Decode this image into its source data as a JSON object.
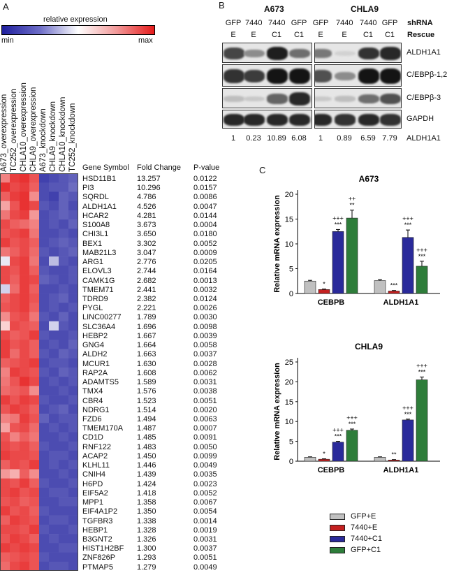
{
  "panel_a": {
    "letter": "A",
    "colorbar": {
      "label": "relative expression",
      "min_label": "min",
      "max_label": "max",
      "low_color": "#1f1f9e",
      "mid_color": "#ffffff",
      "high_color": "#e51b1b"
    },
    "columns": [
      "A673_overexpression",
      "TC252_overexpression",
      "CHLA10_overexpression",
      "CHLA9_overexpression",
      "A673_knockdown",
      "CHLA9_knockdown",
      "CHLA10_knockdown",
      "TC252_knockdown"
    ],
    "table_headers": [
      "Gene Symbol",
      "Fold Change",
      "P-value"
    ],
    "genes": [
      [
        "HSD11B1",
        "13.257",
        "0.0122"
      ],
      [
        "PI3",
        "10.296",
        "0.0157"
      ],
      [
        "SQRDL",
        "4.786",
        "0.0086"
      ],
      [
        "ALDH1A1",
        "4.526",
        "0.0047"
      ],
      [
        "HCAR2",
        "4.281",
        "0.0144"
      ],
      [
        "S100A8",
        "3.673",
        "0.0004"
      ],
      [
        "CHI3L1",
        "3.650",
        "0.0180"
      ],
      [
        "BEX1",
        "3.302",
        "0.0052"
      ],
      [
        "MAB21L3",
        "3.047",
        "0.0009"
      ],
      [
        "ARG1",
        "2.776",
        "0.0205"
      ],
      [
        "ELOVL3",
        "2.744",
        "0.0164"
      ],
      [
        "CAMK1G",
        "2.682",
        "0.0013"
      ],
      [
        "TMEM71",
        "2.441",
        "0.0032"
      ],
      [
        "TDRD9",
        "2.382",
        "0.0124"
      ],
      [
        "PYGL",
        "2.221",
        "0.0026"
      ],
      [
        "LINC00277",
        "1.789",
        "0.0030"
      ],
      [
        "SLC36A4",
        "1.696",
        "0.0098"
      ],
      [
        "HEBP2",
        "1.667",
        "0.0039"
      ],
      [
        "GNG4",
        "1.664",
        "0.0058"
      ],
      [
        "ALDH2",
        "1.663",
        "0.0037"
      ],
      [
        "MCUR1",
        "1.630",
        "0.0028"
      ],
      [
        "RAP2A",
        "1.608",
        "0.0062"
      ],
      [
        "ADAMTS5",
        "1.589",
        "0.0031"
      ],
      [
        "TMX4",
        "1.576",
        "0.0038"
      ],
      [
        "CBR4",
        "1.523",
        "0.0051"
      ],
      [
        "NDRG1",
        "1.514",
        "0.0020"
      ],
      [
        "FZD6",
        "1.494",
        "0.0063"
      ],
      [
        "TMEM170A",
        "1.487",
        "0.0007"
      ],
      [
        "CD1D",
        "1.485",
        "0.0091"
      ],
      [
        "RNF122",
        "1.483",
        "0.0050"
      ],
      [
        "ACAP2",
        "1.450",
        "0.0099"
      ],
      [
        "KLHL11",
        "1.446",
        "0.0049"
      ],
      [
        "CNIH4",
        "1.439",
        "0.0035"
      ],
      [
        "H6PD",
        "1.424",
        "0.0023"
      ],
      [
        "EIF5A2",
        "1.418",
        "0.0052"
      ],
      [
        "MPP1",
        "1.358",
        "0.0067"
      ],
      [
        "EIF4A1P2",
        "1.350",
        "0.0054"
      ],
      [
        "TGFBR3",
        "1.338",
        "0.0014"
      ],
      [
        "HEBP1",
        "1.328",
        "0.0019"
      ],
      [
        "B3GNT2",
        "1.326",
        "0.0031"
      ],
      [
        "HIST1H2BF",
        "1.300",
        "0.0037"
      ],
      [
        "ZNF826P",
        "1.293",
        "0.0051"
      ],
      [
        "PTMAP5",
        "1.279",
        "0.0049"
      ]
    ],
    "heatmap": [
      [
        0.55,
        0.85,
        0.9,
        0.75,
        -0.85,
        -0.8,
        -0.75,
        -0.7
      ],
      [
        0.9,
        0.8,
        0.85,
        0.7,
        -0.8,
        -0.75,
        -0.75,
        -0.65
      ],
      [
        0.7,
        0.85,
        0.9,
        0.5,
        -0.8,
        -0.85,
        -0.7,
        -0.75
      ],
      [
        0.4,
        0.75,
        0.9,
        0.8,
        -0.75,
        -0.8,
        -0.7,
        -0.8
      ],
      [
        0.6,
        0.8,
        0.85,
        0.45,
        -0.8,
        -0.75,
        -0.7,
        -0.75
      ],
      [
        0.8,
        0.7,
        0.65,
        0.55,
        -0.8,
        -0.75,
        -0.8,
        -0.7
      ],
      [
        0.75,
        0.8,
        0.85,
        0.6,
        -0.8,
        -0.8,
        -0.75,
        -0.8
      ],
      [
        0.85,
        0.75,
        0.8,
        0.7,
        -0.8,
        -0.75,
        -0.7,
        -0.75
      ],
      [
        0.6,
        0.7,
        0.8,
        0.65,
        -0.75,
        -0.8,
        -0.75,
        -0.7
      ],
      [
        -0.1,
        0.8,
        0.85,
        0.6,
        -0.8,
        -0.3,
        -0.75,
        -0.8
      ],
      [
        0.8,
        0.75,
        0.85,
        0.7,
        -0.75,
        -0.8,
        -0.8,
        -0.75
      ],
      [
        0.8,
        0.7,
        0.85,
        0.8,
        -0.7,
        -0.75,
        -0.8,
        -0.75
      ],
      [
        -0.2,
        0.65,
        0.85,
        0.7,
        -0.8,
        -0.8,
        -0.75,
        -0.8
      ],
      [
        0.7,
        0.8,
        0.85,
        0.75,
        -0.8,
        -0.75,
        -0.7,
        -0.8
      ],
      [
        0.75,
        0.8,
        0.85,
        0.7,
        -0.8,
        -0.75,
        -0.8,
        -0.75
      ],
      [
        0.5,
        0.75,
        0.8,
        0.6,
        -0.75,
        -0.8,
        -0.7,
        -0.8
      ],
      [
        0.2,
        0.8,
        0.75,
        0.7,
        -0.8,
        -0.2,
        -0.75,
        -0.8
      ],
      [
        0.8,
        0.7,
        0.75,
        0.85,
        -0.75,
        -0.8,
        -0.8,
        -0.75
      ],
      [
        0.85,
        0.75,
        0.8,
        0.7,
        -0.8,
        -0.75,
        -0.8,
        -0.7
      ],
      [
        0.85,
        0.65,
        0.8,
        0.7,
        -0.75,
        -0.8,
        -0.7,
        -0.75
      ],
      [
        0.7,
        0.75,
        0.8,
        0.85,
        -0.8,
        -0.75,
        -0.75,
        -0.8
      ],
      [
        0.55,
        0.85,
        0.8,
        0.75,
        -0.75,
        -0.8,
        -0.7,
        -0.75
      ],
      [
        0.6,
        0.75,
        0.9,
        0.8,
        -0.8,
        -0.75,
        -0.8,
        -0.75
      ],
      [
        0.65,
        0.7,
        0.75,
        0.5,
        -0.8,
        -0.8,
        -0.75,
        -0.8
      ],
      [
        0.85,
        0.75,
        0.85,
        0.8,
        -0.75,
        -0.8,
        -0.8,
        -0.75
      ],
      [
        0.75,
        0.85,
        0.8,
        0.7,
        -0.8,
        -0.75,
        -0.7,
        -0.8
      ],
      [
        0.55,
        0.6,
        0.85,
        0.75,
        -0.7,
        -0.8,
        -0.75,
        -0.75
      ],
      [
        0.4,
        0.75,
        0.8,
        0.65,
        -0.8,
        -0.75,
        -0.8,
        -0.75
      ],
      [
        0.75,
        0.55,
        0.7,
        0.6,
        -0.8,
        -0.8,
        -0.75,
        -0.8
      ],
      [
        0.8,
        0.75,
        0.8,
        0.7,
        -0.75,
        -0.8,
        -0.8,
        -0.75
      ],
      [
        0.85,
        0.8,
        0.8,
        0.75,
        -0.8,
        -0.75,
        -0.75,
        -0.8
      ],
      [
        0.7,
        0.8,
        0.75,
        0.85,
        -0.8,
        -0.75,
        -0.8,
        -0.75
      ],
      [
        0.45,
        0.35,
        0.7,
        0.5,
        -0.8,
        -0.8,
        -0.75,
        -0.8
      ],
      [
        0.8,
        0.75,
        0.85,
        0.7,
        -0.75,
        -0.8,
        -0.8,
        -0.75
      ],
      [
        0.8,
        0.85,
        0.75,
        0.8,
        -0.8,
        -0.75,
        -0.75,
        -0.8
      ],
      [
        0.75,
        0.8,
        0.7,
        0.75,
        -0.8,
        -0.8,
        -0.75,
        -0.75
      ],
      [
        0.85,
        0.75,
        0.8,
        0.7,
        -0.75,
        -0.8,
        -0.8,
        -0.8
      ],
      [
        0.7,
        0.85,
        0.8,
        0.75,
        -0.8,
        -0.75,
        -0.75,
        -0.8
      ],
      [
        0.8,
        0.8,
        0.75,
        0.85,
        -0.75,
        -0.8,
        -0.8,
        -0.75
      ],
      [
        0.75,
        0.85,
        0.8,
        0.7,
        -0.8,
        -0.75,
        -0.8,
        -0.8
      ],
      [
        0.85,
        0.8,
        0.85,
        0.8,
        -0.8,
        -0.8,
        -0.75,
        -0.75
      ],
      [
        0.7,
        0.75,
        0.8,
        0.75,
        -0.75,
        -0.8,
        -0.8,
        -0.8
      ],
      [
        0.65,
        0.8,
        0.85,
        0.75,
        -0.8,
        -0.75,
        -0.75,
        -0.8
      ]
    ]
  },
  "panel_b": {
    "letter": "B",
    "cell_lines": [
      "A673",
      "CHLA9"
    ],
    "shrna_label": "shRNA",
    "rescue_label": "Rescue",
    "shrna": [
      "GFP",
      "7440",
      "7440",
      "GFP"
    ],
    "rescue": [
      "E",
      "E",
      "C1",
      "C1"
    ],
    "blot_labels": [
      "ALDH1A1",
      "C/EBPβ-1,2",
      "C/EBPβ-3",
      "GAPDH"
    ],
    "quant_label": "ALDH1A1",
    "quant_a673": [
      "1",
      "0.23",
      "10.89",
      "6.08"
    ],
    "quant_chla9": [
      "1",
      "0.89",
      "6.59",
      "7.79"
    ]
  },
  "panel_c": {
    "letter": "C",
    "legend": [
      {
        "name": "GFP+E",
        "color": "#c0c0c0"
      },
      {
        "name": "7440+E",
        "color": "#c42020"
      },
      {
        "name": "7440+C1",
        "color": "#2a2a9a"
      },
      {
        "name": "GFP+C1",
        "color": "#2e7d3a"
      }
    ]
  },
  "chart_data": [
    {
      "type": "bar",
      "title": "A673",
      "ylabel": "Relative mRNA expression",
      "categories": [
        "CEBPB",
        "ALDH1A1"
      ],
      "ylim": [
        0,
        20
      ],
      "yticks": [
        "0",
        "5",
        "10",
        "15",
        "20"
      ],
      "series": [
        {
          "name": "GFP+E",
          "values": [
            2.5,
            2.6
          ],
          "errors": [
            0.15,
            0.2
          ],
          "annotations": [
            "",
            ""
          ]
        },
        {
          "name": "7440+E",
          "values": [
            0.8,
            0.5
          ],
          "errors": [
            0.1,
            0.1
          ],
          "annotations": [
            "*",
            "***"
          ]
        },
        {
          "name": "7440+C1",
          "values": [
            12.5,
            11.3
          ],
          "errors": [
            0.4,
            1.5
          ],
          "annotations": [
            "+++\n***",
            "+++\n***"
          ]
        },
        {
          "name": "GFP+C1",
          "values": [
            15.2,
            5.5
          ],
          "errors": [
            1.6,
            1.0
          ],
          "annotations": [
            "++\n**",
            "+++\n***"
          ]
        }
      ]
    },
    {
      "type": "bar",
      "title": "CHLA9",
      "ylabel": "Relative mRNA expression",
      "categories": [
        "CEBPB",
        "ALDH1A1"
      ],
      "ylim": [
        0,
        25
      ],
      "yticks": [
        "0",
        "5",
        "10",
        "15",
        "20",
        "25"
      ],
      "series": [
        {
          "name": "GFP+E",
          "values": [
            1.0,
            1.0
          ],
          "errors": [
            0.1,
            0.1
          ],
          "annotations": [
            "",
            ""
          ]
        },
        {
          "name": "7440+E",
          "values": [
            0.5,
            0.3
          ],
          "errors": [
            0.1,
            0.1
          ],
          "annotations": [
            "*",
            "**"
          ]
        },
        {
          "name": "7440+C1",
          "values": [
            4.8,
            10.4
          ],
          "errors": [
            0.2,
            0.2
          ],
          "annotations": [
            "+++\n***",
            "+++\n***"
          ]
        },
        {
          "name": "GFP+C1",
          "values": [
            7.8,
            20.5
          ],
          "errors": [
            0.3,
            0.7
          ],
          "annotations": [
            "+++\n***",
            "+++\n***"
          ]
        }
      ]
    }
  ]
}
